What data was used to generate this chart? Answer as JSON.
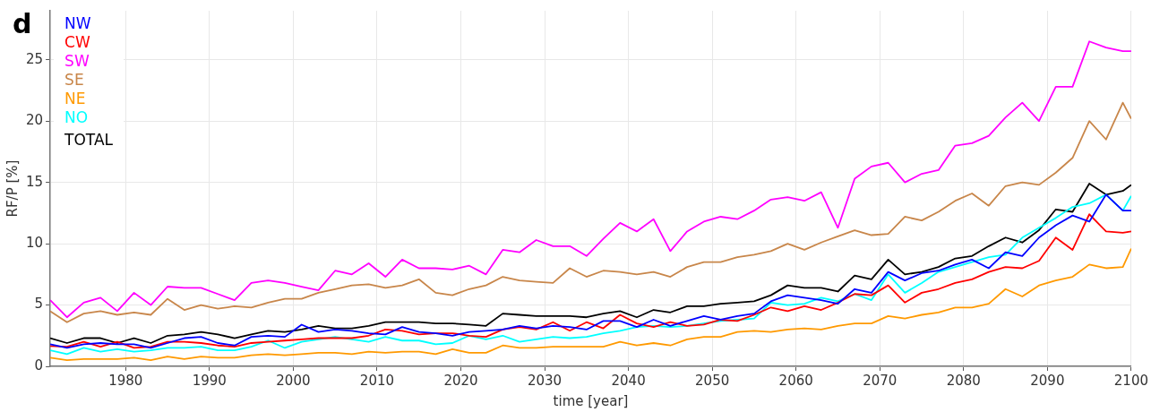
{
  "chart_data": {
    "type": "line",
    "xlabel": "time [year]",
    "ylabel": "RF/P [%]",
    "annotations": [
      "d"
    ],
    "x": [
      1971,
      1973,
      1975,
      1977,
      1979,
      1981,
      1983,
      1985,
      1987,
      1989,
      1991,
      1993,
      1995,
      1997,
      1999,
      2001,
      2003,
      2005,
      2007,
      2009,
      2011,
      2013,
      2015,
      2017,
      2019,
      2021,
      2023,
      2025,
      2027,
      2029,
      2031,
      2033,
      2035,
      2037,
      2039,
      2041,
      2043,
      2045,
      2047,
      2049,
      2051,
      2053,
      2055,
      2057,
      2059,
      2061,
      2063,
      2065,
      2067,
      2069,
      2071,
      2073,
      2075,
      2077,
      2079,
      2081,
      2083,
      2085,
      2087,
      2089,
      2091,
      2093,
      2095,
      2097,
      2099,
      2100
    ],
    "series": [
      {
        "name": "NW",
        "color": "#0000ff",
        "values": [
          1.8,
          1.5,
          1.8,
          1.9,
          1.8,
          1.8,
          1.5,
          1.9,
          2.3,
          2.4,
          1.9,
          1.7,
          2.4,
          2.5,
          2.4,
          3.4,
          2.8,
          3.0,
          2.9,
          2.7,
          2.6,
          3.2,
          2.8,
          2.7,
          2.5,
          2.8,
          2.9,
          3.0,
          3.3,
          3.1,
          3.3,
          3.2,
          3.0,
          3.7,
          3.7,
          3.2,
          3.8,
          3.3,
          3.7,
          4.1,
          3.8,
          4.1,
          4.3,
          5.3,
          5.8,
          5.6,
          5.4,
          5.1,
          6.3,
          6.0,
          7.7,
          7.0,
          7.6,
          7.8,
          8.3,
          8.7,
          8.0,
          9.3,
          9.0,
          10.5,
          11.5,
          12.3,
          11.8,
          14.0,
          12.7,
          12.7
        ]
      },
      {
        "name": "CW",
        "color": "#ff0000",
        "values": [
          1.65,
          1.6,
          2.0,
          1.6,
          2.0,
          1.5,
          1.6,
          2.0,
          2.0,
          1.9,
          1.7,
          1.6,
          1.9,
          2.0,
          2.1,
          2.2,
          2.3,
          2.3,
          2.3,
          2.5,
          3.0,
          2.9,
          2.6,
          2.7,
          2.7,
          2.5,
          2.4,
          3.0,
          3.2,
          3.0,
          3.6,
          2.9,
          3.6,
          3.1,
          4.2,
          3.5,
          3.2,
          3.6,
          3.3,
          3.4,
          3.8,
          3.7,
          4.2,
          4.8,
          4.5,
          4.9,
          4.6,
          5.2,
          5.9,
          5.8,
          6.6,
          5.2,
          6.0,
          6.3,
          6.8,
          7.1,
          7.7,
          8.1,
          8.0,
          8.6,
          10.5,
          9.5,
          12.4,
          11.0,
          10.9,
          11.0
        ]
      },
      {
        "name": "SW",
        "color": "#ff00ff",
        "values": [
          5.4,
          4.0,
          5.2,
          5.6,
          4.5,
          6.0,
          5.0,
          6.5,
          6.4,
          6.4,
          5.9,
          5.4,
          6.8,
          7.0,
          6.8,
          6.5,
          6.2,
          7.8,
          7.5,
          8.4,
          7.3,
          8.7,
          8.0,
          8.0,
          7.9,
          8.2,
          7.5,
          9.5,
          9.3,
          10.3,
          9.8,
          9.8,
          9.0,
          10.4,
          11.7,
          11.0,
          12.0,
          9.4,
          11.0,
          11.8,
          12.2,
          12.0,
          12.7,
          13.6,
          13.8,
          13.5,
          14.2,
          11.3,
          15.3,
          16.3,
          16.6,
          15.0,
          15.7,
          16.0,
          18.0,
          18.2,
          18.8,
          20.3,
          21.5,
          20.0,
          22.8,
          22.8,
          26.5,
          26.0,
          25.7,
          25.7
        ]
      },
      {
        "name": "SE",
        "color": "#c8864a",
        "values": [
          4.5,
          3.6,
          4.3,
          4.5,
          4.2,
          4.4,
          4.2,
          5.5,
          4.6,
          5.0,
          4.7,
          4.9,
          4.8,
          5.2,
          5.5,
          5.5,
          6.0,
          6.3,
          6.6,
          6.7,
          6.4,
          6.6,
          7.1,
          6.0,
          5.8,
          6.3,
          6.6,
          7.3,
          7.0,
          6.9,
          6.8,
          8.0,
          7.3,
          7.8,
          7.7,
          7.5,
          7.7,
          7.3,
          8.1,
          8.5,
          8.5,
          8.9,
          9.1,
          9.4,
          10.0,
          9.5,
          10.1,
          10.6,
          11.1,
          10.7,
          10.8,
          12.2,
          11.9,
          12.6,
          13.5,
          14.1,
          13.1,
          14.7,
          15.0,
          14.8,
          15.8,
          17.0,
          20.0,
          18.5,
          21.5,
          20.2
        ]
      },
      {
        "name": "NE",
        "color": "#ff9900",
        "values": [
          0.7,
          0.5,
          0.6,
          0.6,
          0.6,
          0.7,
          0.5,
          0.8,
          0.6,
          0.8,
          0.7,
          0.7,
          0.9,
          1.0,
          0.9,
          1.0,
          1.1,
          1.1,
          1.0,
          1.2,
          1.1,
          1.2,
          1.2,
          1.0,
          1.4,
          1.1,
          1.1,
          1.7,
          1.5,
          1.5,
          1.6,
          1.6,
          1.6,
          1.6,
          2.0,
          1.7,
          1.9,
          1.7,
          2.2,
          2.4,
          2.4,
          2.8,
          2.9,
          2.8,
          3.0,
          3.1,
          3.0,
          3.3,
          3.5,
          3.5,
          4.1,
          3.9,
          4.2,
          4.4,
          4.8,
          4.8,
          5.1,
          6.3,
          5.7,
          6.6,
          7.0,
          7.3,
          8.3,
          8.0,
          8.1,
          9.6
        ]
      },
      {
        "name": "NO",
        "color": "#00ffff",
        "values": [
          1.3,
          1.0,
          1.5,
          1.2,
          1.4,
          1.2,
          1.3,
          1.5,
          1.5,
          1.6,
          1.3,
          1.3,
          1.6,
          2.1,
          1.5,
          2.0,
          2.2,
          2.4,
          2.2,
          2.0,
          2.4,
          2.1,
          2.1,
          1.8,
          1.9,
          2.5,
          2.2,
          2.5,
          2.0,
          2.2,
          2.4,
          2.3,
          2.4,
          2.7,
          2.9,
          3.2,
          3.3,
          3.2,
          3.3,
          3.5,
          3.7,
          3.8,
          3.9,
          5.2,
          5.0,
          5.1,
          5.6,
          5.3,
          5.9,
          5.4,
          7.5,
          6.0,
          6.8,
          7.7,
          8.1,
          8.5,
          8.9,
          9.1,
          10.5,
          11.3,
          12.1,
          13.0,
          13.3,
          14.0,
          12.7,
          13.9
        ]
      },
      {
        "name": "TOTAL",
        "color": "#000000",
        "values": [
          2.3,
          1.9,
          2.3,
          2.3,
          1.9,
          2.3,
          1.9,
          2.5,
          2.6,
          2.8,
          2.6,
          2.3,
          2.6,
          2.9,
          2.8,
          3.0,
          3.3,
          3.1,
          3.1,
          3.3,
          3.6,
          3.6,
          3.6,
          3.5,
          3.5,
          3.4,
          3.3,
          4.3,
          4.2,
          4.1,
          4.1,
          4.1,
          4.0,
          4.3,
          4.5,
          4.0,
          4.6,
          4.4,
          4.9,
          4.9,
          5.1,
          5.2,
          5.3,
          5.8,
          6.6,
          6.4,
          6.4,
          6.1,
          7.4,
          7.1,
          8.7,
          7.5,
          7.7,
          8.1,
          8.8,
          9.0,
          9.8,
          10.5,
          10.1,
          11.1,
          12.8,
          12.6,
          14.9,
          14.0,
          14.3,
          14.8
        ]
      }
    ],
    "xlim": [
      1971,
      2100
    ],
    "xticks": [
      1980,
      1990,
      2000,
      2010,
      2020,
      2030,
      2040,
      2050,
      2060,
      2070,
      2080,
      2090,
      2100
    ],
    "ylim": [
      0,
      29
    ],
    "yticks": [
      0,
      5,
      10,
      15,
      20,
      25
    ],
    "grid": true,
    "legend": "top left",
    "marker": "none",
    "line_style": "solid"
  }
}
